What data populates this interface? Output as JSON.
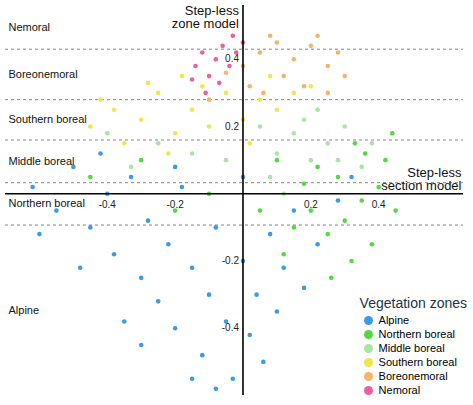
{
  "chart_data": {
    "type": "scatter",
    "y_axis_label": "Step-less zone model",
    "x_axis_label": "Step-less section model",
    "legend_title": "Vegetation zones",
    "legend": "bottom-right",
    "xlim": [
      -0.7,
      0.65
    ],
    "ylim": [
      -0.6,
      0.56
    ],
    "xticks": [
      -0.4,
      -0.2,
      0.2,
      0.4
    ],
    "yticks": [
      -0.4,
      -0.2,
      0.2,
      0.4
    ],
    "zones": [
      "Nemoral",
      "Boreonemoral",
      "Southern boreal",
      "Middle boreal",
      "Northern boreal",
      "Alpine"
    ],
    "zone_boundaries": [
      0.43,
      0.28,
      0.16,
      0.033,
      -0.093
    ],
    "series": [
      {
        "name": "Alpine",
        "color": "#3d9be3",
        "x": [
          -0.62,
          -0.55,
          -0.5,
          -0.45,
          -0.4,
          -0.38,
          -0.33,
          -0.3,
          -0.28,
          -0.25,
          -0.22,
          -0.2,
          -0.18,
          -0.15,
          -0.12,
          -0.1,
          -0.08,
          -0.05,
          -0.03,
          0.0,
          0.02,
          0.04,
          0.06,
          0.08,
          0.1,
          0.12,
          0.15,
          0.18,
          0.22,
          0.28,
          -0.6,
          -0.48,
          -0.35,
          -0.15,
          -0.42,
          -0.2,
          0.32,
          -0.08,
          0.0,
          -0.3
        ],
        "y": [
          0.02,
          -0.05,
          0.08,
          -0.1,
          0.0,
          -0.18,
          0.05,
          -0.25,
          -0.08,
          -0.32,
          -0.15,
          -0.4,
          0.02,
          -0.22,
          -0.48,
          -0.3,
          -0.1,
          -0.38,
          -0.55,
          -0.2,
          -0.42,
          -0.3,
          -0.5,
          -0.12,
          -0.35,
          -0.22,
          -0.05,
          -0.28,
          -0.15,
          -0.02,
          -0.12,
          -0.22,
          -0.38,
          -0.55,
          0.12,
          0.08,
          0.05,
          -0.58,
          0.05,
          -0.45
        ]
      },
      {
        "name": "Northern boreal",
        "color": "#55d942",
        "x": [
          0.15,
          0.2,
          0.25,
          0.3,
          0.35,
          0.4,
          0.45,
          0.38,
          0.32,
          0.28,
          0.22,
          0.42,
          0.36,
          0.18,
          0.26,
          0.12,
          -0.1,
          -0.3,
          -0.45,
          0.05,
          0.44,
          0.33,
          -0.2,
          0.1
        ],
        "y": [
          -0.1,
          -0.05,
          -0.12,
          -0.08,
          -0.02,
          0.02,
          -0.05,
          -0.15,
          -0.2,
          0.05,
          0.08,
          0.1,
          0.12,
          0.03,
          -0.25,
          -0.18,
          0.0,
          0.1,
          0.05,
          -0.05,
          0.18,
          0.15,
          -0.05,
          0.1
        ]
      },
      {
        "name": "Middle boreal",
        "color": "#a8e6a2",
        "x": [
          0.1,
          0.15,
          0.2,
          0.25,
          0.3,
          0.18,
          0.08,
          0.28,
          0.35,
          -0.05,
          -0.25,
          -0.4,
          0.22,
          0.12,
          -0.15,
          0.38,
          0.05,
          -0.33
        ],
        "y": [
          0.12,
          0.18,
          0.1,
          0.15,
          0.2,
          0.22,
          0.05,
          0.1,
          0.08,
          0.1,
          0.15,
          0.18,
          0.25,
          0.0,
          0.12,
          0.15,
          0.2,
          0.08
        ]
      },
      {
        "name": "Southern boreal",
        "color": "#f1e64c",
        "x": [
          -0.45,
          -0.38,
          -0.3,
          -0.25,
          -0.2,
          -0.15,
          -0.1,
          -0.05,
          0.0,
          0.05,
          0.1,
          0.15,
          -0.35,
          -0.28,
          -0.12,
          0.02,
          0.2,
          -0.42,
          -0.18,
          0.08,
          -0.22
        ],
        "y": [
          0.2,
          0.25,
          0.22,
          0.3,
          0.18,
          0.25,
          0.2,
          0.3,
          0.22,
          0.28,
          0.25,
          0.3,
          0.15,
          0.33,
          0.32,
          0.15,
          0.32,
          0.28,
          0.35,
          0.35,
          0.12
        ]
      },
      {
        "name": "Boreonemoral",
        "color": "#f5b46c",
        "x": [
          0.0,
          0.05,
          0.1,
          0.15,
          0.2,
          0.25,
          0.28,
          0.12,
          0.18,
          0.02,
          -0.05,
          0.22,
          0.08,
          0.3,
          -0.1,
          0.25,
          0.06
        ],
        "y": [
          0.38,
          0.42,
          0.45,
          0.4,
          0.44,
          0.38,
          0.42,
          0.35,
          0.32,
          0.32,
          0.36,
          0.47,
          0.47,
          0.35,
          0.28,
          0.3,
          0.3
        ]
      },
      {
        "name": "Nemoral",
        "color": "#ee5fa2",
        "x": [
          -0.14,
          -0.12,
          -0.1,
          -0.08,
          -0.06,
          -0.04,
          -0.02,
          -0.11,
          -0.07,
          0.0,
          -0.15,
          -0.03
        ],
        "y": [
          0.38,
          0.42,
          0.35,
          0.4,
          0.44,
          0.38,
          0.42,
          0.3,
          0.33,
          0.45,
          0.34,
          0.47
        ]
      }
    ]
  }
}
